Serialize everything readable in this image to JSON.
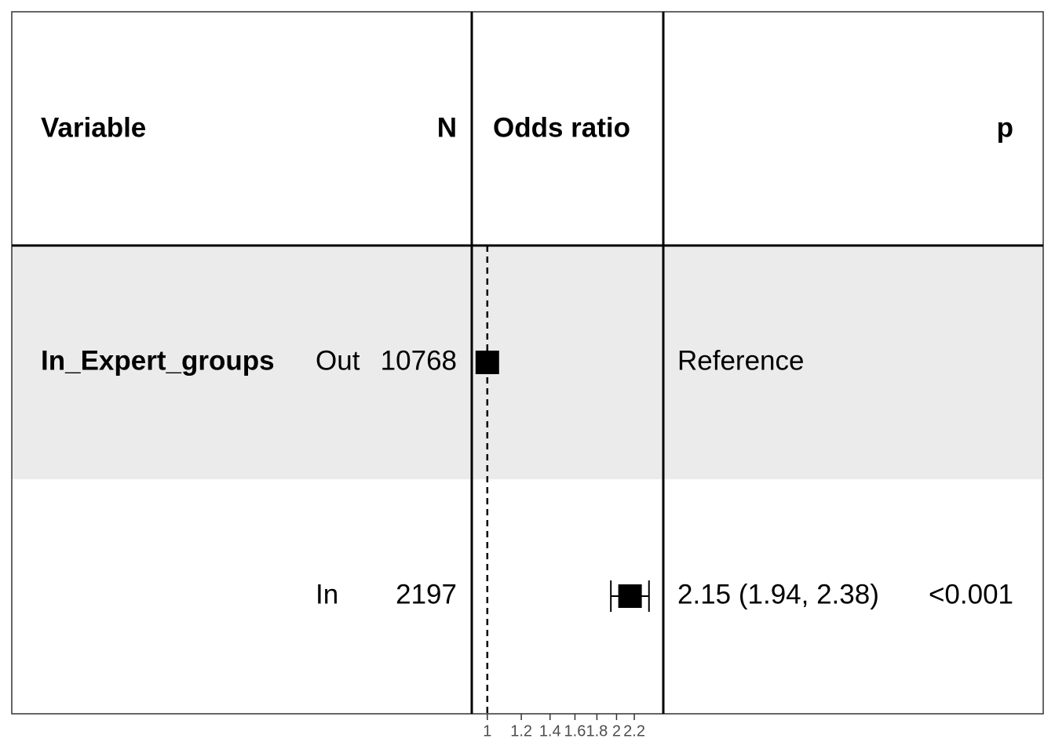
{
  "chart_data": {
    "type": "forest",
    "headers": {
      "variable": "Variable",
      "n": "N",
      "estimate": "Odds ratio",
      "p": "p"
    },
    "rows": [
      {
        "variable": "In_Expert_groups",
        "level": "Out",
        "n": 10768,
        "estimate": 1,
        "ci_low": null,
        "ci_high": null,
        "label": "Reference",
        "p": null
      },
      {
        "variable": null,
        "level": "In",
        "n": 2197,
        "estimate": 2.15,
        "ci_low": 1.94,
        "ci_high": 2.38,
        "label": "2.15 (1.94, 2.38)",
        "p": "<0.001"
      }
    ],
    "xlim": [
      0.92,
      2.57
    ],
    "xticks": [
      1,
      1.2,
      1.4,
      1.6,
      1.8,
      2,
      2.2
    ],
    "log_scale": true,
    "reference_line": 1,
    "color": "#000000",
    "stripe_color": "#ebebeb"
  }
}
